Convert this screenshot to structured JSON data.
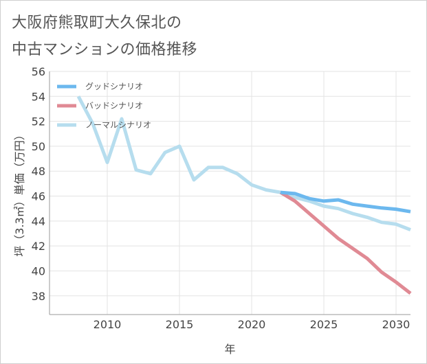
{
  "title_lines": [
    "大阪府熊取町大久保北の",
    "中古マンションの価格推移"
  ],
  "chart_data": {
    "type": "line",
    "title": "大阪府熊取町大久保北の中古マンションの価格推移",
    "xlabel": "年",
    "ylabel": "坪（3.3㎡）単価（万円）",
    "xlim": [
      2006,
      2031
    ],
    "ylim": [
      36.5,
      56
    ],
    "xticks": [
      2010,
      2015,
      2020,
      2025,
      2030
    ],
    "yticks": [
      38,
      40,
      42,
      44,
      46,
      48,
      50,
      52,
      54,
      56
    ],
    "grid": true,
    "legend_position": "top-left",
    "series": [
      {
        "name": "グッドシナリオ",
        "color": "#6cb8ee",
        "x": [
          2022,
          2023,
          2024,
          2025,
          2026,
          2027,
          2028,
          2029,
          2030,
          2031
        ],
        "y": [
          46.3,
          46.2,
          45.8,
          45.6,
          45.7,
          45.35,
          45.2,
          45.05,
          44.95,
          44.75
        ]
      },
      {
        "name": "バッドシナリオ",
        "color": "#e08a94",
        "x": [
          2022,
          2023,
          2024,
          2025,
          2026,
          2027,
          2028,
          2029,
          2030,
          2031
        ],
        "y": [
          46.3,
          45.6,
          44.6,
          43.6,
          42.6,
          41.8,
          41.0,
          39.9,
          39.1,
          38.2
        ]
      },
      {
        "name": "ノーマルシナリオ",
        "color": "#b6ddee",
        "x": [
          2008,
          2009,
          2010,
          2011,
          2012,
          2013,
          2014,
          2015,
          2016,
          2017,
          2018,
          2019,
          2020,
          2021,
          2022,
          2023,
          2024,
          2025,
          2026,
          2027,
          2028,
          2029,
          2030,
          2031
        ],
        "y": [
          54.0,
          51.8,
          48.7,
          52.2,
          48.1,
          47.8,
          49.5,
          50.0,
          47.3,
          48.3,
          48.3,
          47.8,
          46.9,
          46.5,
          46.3,
          45.9,
          45.6,
          45.2,
          45.0,
          44.6,
          44.3,
          43.9,
          43.75,
          43.3
        ]
      }
    ]
  }
}
